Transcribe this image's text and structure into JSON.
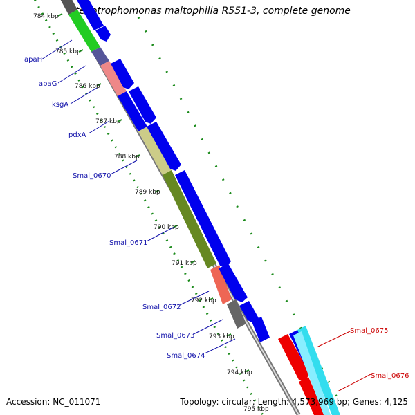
{
  "map": {
    "title": "Stenotrophomonas maltophilia R551-3, complete genome",
    "accession": "Accession: NC_011071",
    "summary": "Topology: circular; Length: 4,573,969 bp; Genes: 4,125"
  },
  "ruler": {
    "labels": [
      "784 kbp",
      "785 kbp",
      "786 kbp",
      "787 kbp",
      "788 kbp",
      "789 kbp",
      "790 kbp",
      "791 kbp",
      "792 kbp",
      "793 kbp",
      "794 kbp",
      "795 kbp"
    ]
  },
  "genes_left": [
    "apaH",
    "apaG",
    "ksgA",
    "pdxA",
    "Smal_0670",
    "Smal_0671",
    "Smal_0672",
    "Smal_0673",
    "Smal_0674"
  ],
  "genes_right": [
    "Smal_0675",
    "Smal_0676"
  ],
  "colors": {
    "forward_cds": "#0000ee",
    "reverse_cds": "#ee0000",
    "backbone": "#888888",
    "ticks": "#1a8a1a",
    "label_blue": "#1111aa",
    "label_red": "#cc0000"
  }
}
